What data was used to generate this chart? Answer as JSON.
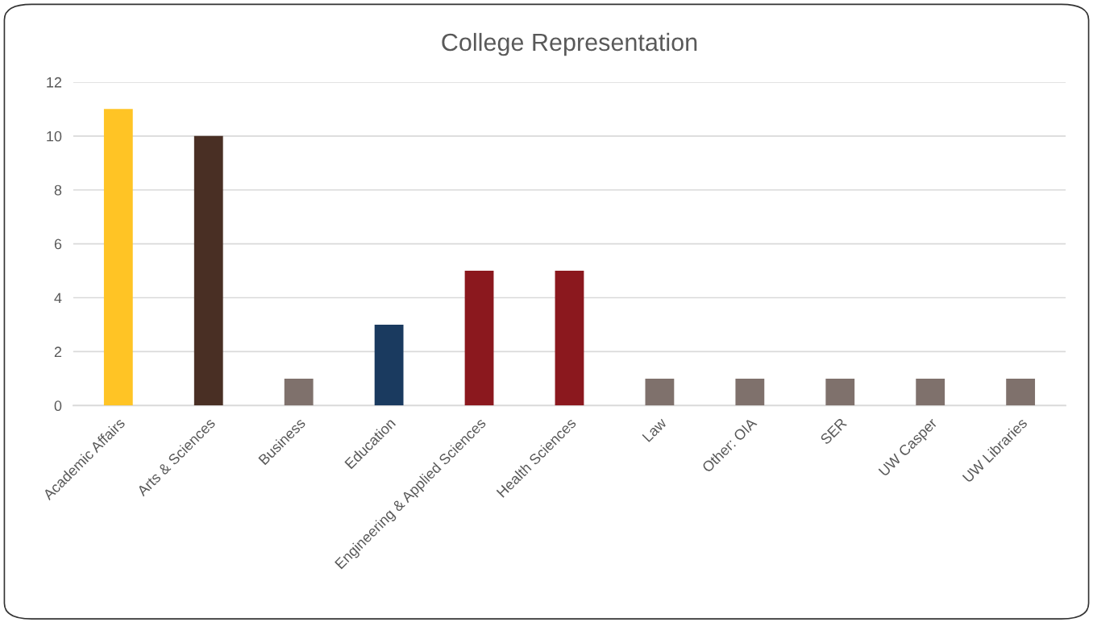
{
  "chart_data": {
    "type": "bar",
    "title": "College Representation",
    "categories": [
      "Academic Affairs",
      "Arts & Sciences",
      "Business",
      "Education",
      "Engineering & Applied Sciences",
      "Health Sciences",
      "Law",
      "Other: OIA",
      "SER",
      "UW Casper",
      "UW Libraries"
    ],
    "values": [
      11,
      10,
      1,
      3,
      5,
      5,
      1,
      1,
      1,
      1,
      1
    ],
    "colors": [
      "#ffc425",
      "#492f24",
      "#7f716c",
      "#1a3a5f",
      "#8b181e",
      "#8b181e",
      "#7f716c",
      "#7f716c",
      "#7f716c",
      "#7f716c",
      "#7f716c"
    ],
    "ylim": [
      0,
      12
    ],
    "yticks": [
      0,
      2,
      4,
      6,
      8,
      10,
      12
    ],
    "grid": "y"
  }
}
